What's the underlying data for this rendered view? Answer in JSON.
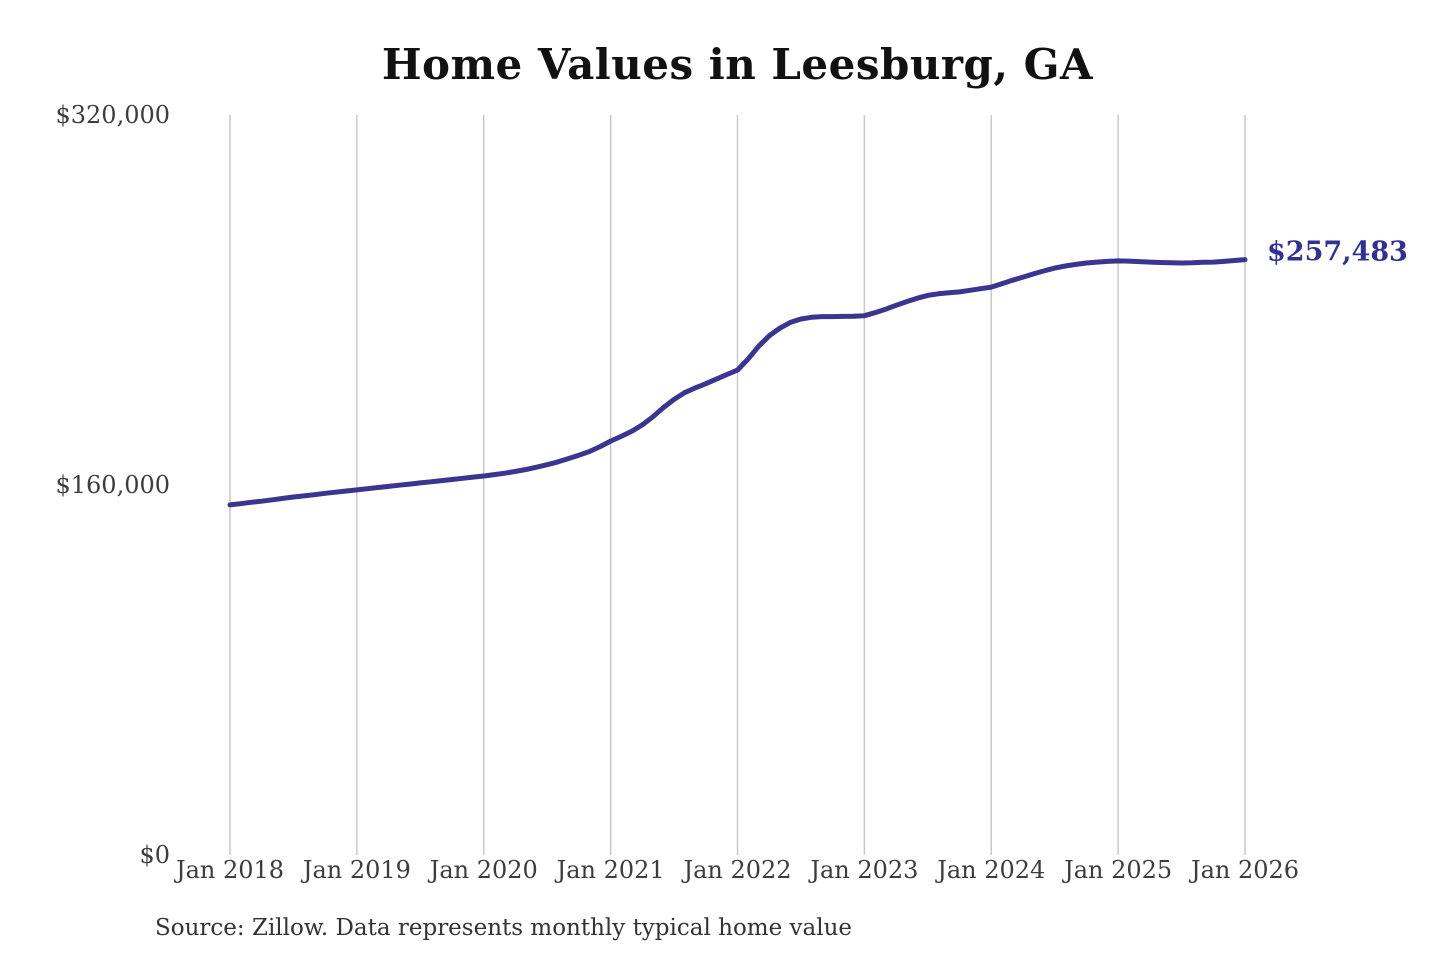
{
  "chart": {
    "title": "Home Values in Leesburg, GA",
    "end_label": "$257,483",
    "source": "Source: Zillow. Data represents monthly typical home value"
  },
  "chart_data": {
    "type": "line",
    "title": "Home Values in Leesburg, GA",
    "series_name": "Monthly typical home value",
    "x_unit": "month",
    "x_range": [
      "Jan 2018",
      "Jan 2026"
    ],
    "x_tick_labels": [
      "Jan 2018",
      "Jan 2019",
      "Jan 2020",
      "Jan 2021",
      "Jan 2022",
      "Jan 2023",
      "Jan 2024",
      "Jan 2025",
      "Jan 2026"
    ],
    "y_ticks": [
      {
        "label": "$0",
        "value": 0
      },
      {
        "label": "$160,000",
        "value": 160000
      },
      {
        "label": "$320,000",
        "value": 320000
      }
    ],
    "ylim": [
      0,
      320000
    ],
    "grid": "vertical-only",
    "legend": "none",
    "final_value": 257483,
    "final_value_label": "$257,483",
    "colors": {
      "line": "#3b3590",
      "annotation": "#333190",
      "grid": "#c9c9c9",
      "axis_text": "#3d3d3d",
      "title": "#111111",
      "source_text": "#333333"
    },
    "values": [
      151400,
      151900,
      152500,
      153000,
      153600,
      154200,
      154800,
      155300,
      155800,
      156400,
      156900,
      157400,
      157900,
      158400,
      158900,
      159400,
      159900,
      160400,
      160900,
      161400,
      161900,
      162400,
      162900,
      163400,
      163900,
      164500,
      165100,
      165900,
      166700,
      167700,
      168800,
      170000,
      171400,
      172900,
      174500,
      176600,
      179000,
      181000,
      183200,
      186000,
      189500,
      193500,
      197000,
      199900,
      202000,
      203800,
      205800,
      207800,
      209700,
      214500,
      220000,
      224500,
      227800,
      230300,
      231800,
      232500,
      232800,
      232800,
      232900,
      233000,
      233200,
      234500,
      236000,
      237700,
      239300,
      240800,
      242000,
      242700,
      243100,
      243500,
      244200,
      244900,
      245600,
      247000,
      248500,
      249900,
      251300,
      252600,
      253800,
      254700,
      255400,
      256000,
      256400,
      256700,
      256900,
      256800,
      256600,
      256400,
      256200,
      256100,
      256000,
      256100,
      256300,
      256400,
      256700,
      257100,
      257483
    ]
  }
}
